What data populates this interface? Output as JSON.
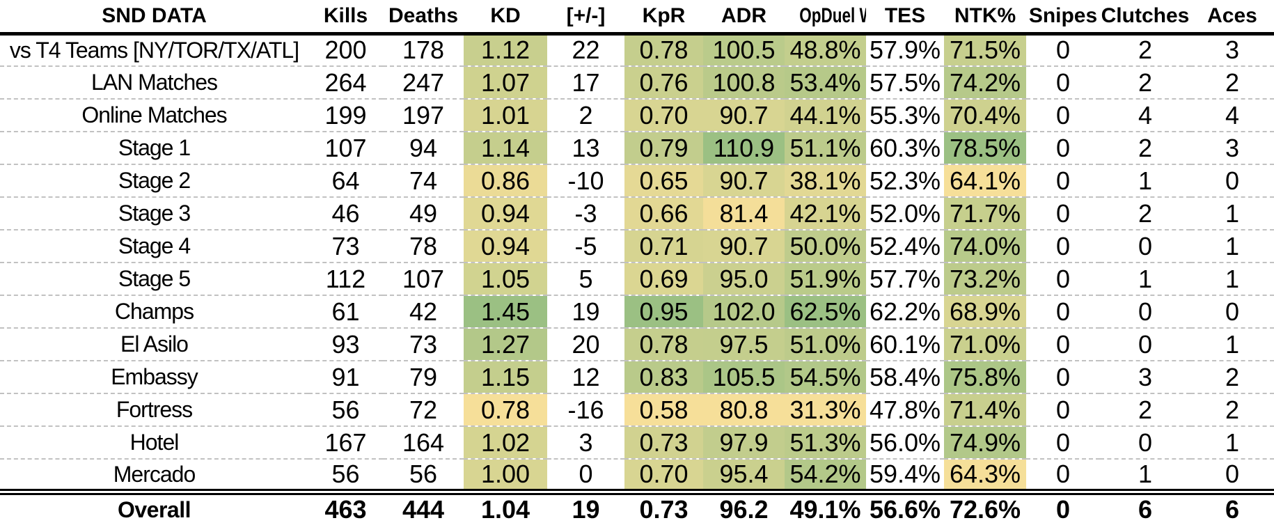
{
  "chart_data": {
    "type": "table",
    "title": "SND DATA",
    "columns": [
      "SND DATA",
      "Kills",
      "Deaths",
      "KD",
      "[+/-]",
      "KpR",
      "ADR",
      "OpDuel W%",
      "TES",
      "NTK%",
      "Snipes",
      "Clutches",
      "Aces"
    ],
    "heat_columns": [
      "KD",
      "KpR",
      "ADR",
      "OpDuel W%",
      "NTK%"
    ],
    "clipped_columns": [
      "OpDuel W%"
    ],
    "heatmap": {
      "min_color": "#F6DF99",
      "max_color": "#9BC083",
      "scale": "per-column linear min(yellow) to max(green), data rows only"
    },
    "rows": [
      [
        "vs T4 Teams [NY/TOR/TX/ATL]",
        "200",
        "178",
        "1.12",
        "22",
        "0.78",
        "100.5",
        "48.8%",
        "57.9%",
        "71.5%",
        "0",
        "2",
        "3"
      ],
      [
        "LAN Matches",
        "264",
        "247",
        "1.07",
        "17",
        "0.76",
        "100.8",
        "53.4%",
        "57.5%",
        "74.2%",
        "0",
        "2",
        "2"
      ],
      [
        "Online Matches",
        "199",
        "197",
        "1.01",
        "2",
        "0.70",
        "90.7",
        "44.1%",
        "55.3%",
        "70.4%",
        "0",
        "4",
        "4"
      ],
      [
        "Stage 1",
        "107",
        "94",
        "1.14",
        "13",
        "0.79",
        "110.9",
        "51.1%",
        "60.3%",
        "78.5%",
        "0",
        "2",
        "3"
      ],
      [
        "Stage 2",
        "64",
        "74",
        "0.86",
        "-10",
        "0.65",
        "90.7",
        "38.1%",
        "52.3%",
        "64.1%",
        "0",
        "1",
        "0"
      ],
      [
        "Stage 3",
        "46",
        "49",
        "0.94",
        "-3",
        "0.66",
        "81.4",
        "42.1%",
        "52.0%",
        "71.7%",
        "0",
        "2",
        "1"
      ],
      [
        "Stage 4",
        "73",
        "78",
        "0.94",
        "-5",
        "0.71",
        "90.7",
        "50.0%",
        "52.4%",
        "74.0%",
        "0",
        "0",
        "1"
      ],
      [
        "Stage 5",
        "112",
        "107",
        "1.05",
        "5",
        "0.69",
        "95.0",
        "51.9%",
        "57.7%",
        "73.2%",
        "0",
        "1",
        "1"
      ],
      [
        "Champs",
        "61",
        "42",
        "1.45",
        "19",
        "0.95",
        "102.0",
        "62.5%",
        "62.2%",
        "68.9%",
        "0",
        "0",
        "0"
      ],
      [
        "El Asilo",
        "93",
        "73",
        "1.27",
        "20",
        "0.78",
        "97.5",
        "51.0%",
        "60.1%",
        "71.0%",
        "0",
        "0",
        "1"
      ],
      [
        "Embassy",
        "91",
        "79",
        "1.15",
        "12",
        "0.83",
        "105.5",
        "54.5%",
        "58.4%",
        "75.8%",
        "0",
        "3",
        "2"
      ],
      [
        "Fortress",
        "56",
        "72",
        "0.78",
        "-16",
        "0.58",
        "80.8",
        "31.3%",
        "47.8%",
        "71.4%",
        "0",
        "2",
        "2"
      ],
      [
        "Hotel",
        "167",
        "164",
        "1.02",
        "3",
        "0.73",
        "97.9",
        "51.3%",
        "56.0%",
        "74.9%",
        "0",
        "0",
        "1"
      ],
      [
        "Mercado",
        "56",
        "56",
        "1.00",
        "0",
        "0.70",
        "95.4",
        "54.2%",
        "59.4%",
        "64.3%",
        "0",
        "1",
        "0"
      ]
    ],
    "overall_row": [
      "Overall",
      "463",
      "444",
      "1.04",
      "19",
      "0.73",
      "96.2",
      "49.1%",
      "56.6%",
      "72.6%",
      "0",
      "6",
      "6"
    ]
  }
}
